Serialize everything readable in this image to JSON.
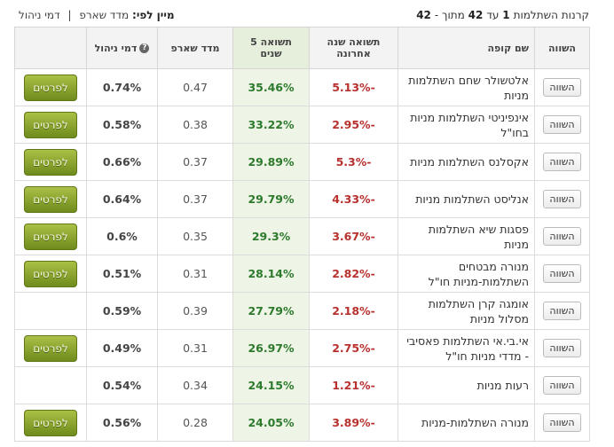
{
  "header": {
    "summary": {
      "prefix": "קרנות השתלמות",
      "from": "1",
      "to_word": "עד",
      "to": "42",
      "of_word": "מתוך -",
      "total": "42"
    },
    "sort": {
      "label": "מיין לפי:",
      "option1": "מדד שארפ",
      "separator": "|",
      "option2": "דמי ניהול"
    }
  },
  "table": {
    "columns": [
      "השווה",
      "שם קופה",
      "תשואה שנה אחרונה",
      "תשואה 5 שנים",
      "מדד שארפ",
      "דמי ניהול"
    ],
    "compare_button": "השווה",
    "details_button": "לפרטים",
    "rows": [
      {
        "name": "אלטשולר שחם השתלמות מניות",
        "return_1y": "-5.13%",
        "return_5y": "35.46%",
        "sharpe": "0.47",
        "fee": "0.74%",
        "details": true
      },
      {
        "name": "אינפיניטי השתלמות מניות בחו\"ל",
        "return_1y": "-2.95%",
        "return_5y": "33.22%",
        "sharpe": "0.38",
        "fee": "0.58%",
        "details": true
      },
      {
        "name": "אקסלנס השתלמות מניות",
        "return_1y": "-5.3%",
        "return_5y": "29.89%",
        "sharpe": "0.37",
        "fee": "0.66%",
        "details": true
      },
      {
        "name": "אנליסט השתלמות מניות",
        "return_1y": "-4.33%",
        "return_5y": "29.79%",
        "sharpe": "0.37",
        "fee": "0.64%",
        "details": true
      },
      {
        "name": "פסגות שיא השתלמות מניות",
        "return_1y": "-3.67%",
        "return_5y": "29.3%",
        "sharpe": "0.35",
        "fee": "0.6%",
        "details": true
      },
      {
        "name": "מנורה מבטחים השתלמות-מניות חו\"ל",
        "return_1y": "-2.82%",
        "return_5y": "28.14%",
        "sharpe": "0.31",
        "fee": "0.51%",
        "details": true
      },
      {
        "name": "אומגה קרן השתלמות מסלול מניות",
        "return_1y": "-2.18%",
        "return_5y": "27.79%",
        "sharpe": "0.39",
        "fee": "0.59%",
        "details": false
      },
      {
        "name": "אי.בי.אי השתלמות פאסיבי - מדדי מניות חו\"ל",
        "return_1y": "-2.75%",
        "return_5y": "26.97%",
        "sharpe": "0.31",
        "fee": "0.49%",
        "details": true
      },
      {
        "name": "רעות מניות",
        "return_1y": "-1.21%",
        "return_5y": "24.15%",
        "sharpe": "0.34",
        "fee": "0.54%",
        "details": false
      },
      {
        "name": "מנורה השתלמות-מניות",
        "return_1y": "-3.89%",
        "return_5y": "24.05%",
        "sharpe": "0.28",
        "fee": "0.56%",
        "details": true
      }
    ]
  }
}
